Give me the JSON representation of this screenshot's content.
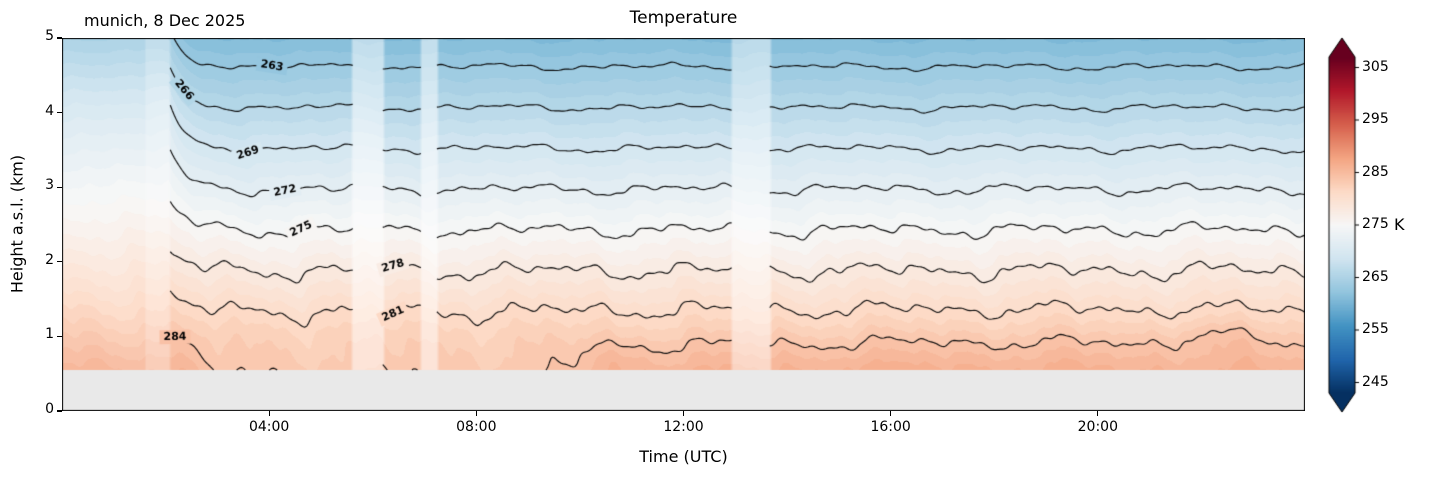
{
  "title": "Temperature",
  "subtitle": "munich, 8 Dec 2025",
  "xlabel": "Time (UTC)",
  "ylabel": "Height a.s.l. (km)",
  "colorbar": {
    "label": "K",
    "ticks": [
      245,
      255,
      265,
      275,
      285,
      295,
      305
    ],
    "vmin": 243,
    "vmax": 307,
    "extend": "both",
    "colormap": "RdBu_r",
    "colors": [
      "#053061",
      "#2166ac",
      "#4393c3",
      "#92c5de",
      "#d1e5f0",
      "#f7f7f7",
      "#fddbc7",
      "#f4a582",
      "#d6604d",
      "#b2182b",
      "#67001f"
    ]
  },
  "axes": {
    "x_range_hours": [
      0,
      24
    ],
    "y_range_km": [
      0,
      5
    ],
    "x_ticks": [
      {
        "value": 4,
        "label": "04:00"
      },
      {
        "value": 8,
        "label": "08:00"
      },
      {
        "value": 12,
        "label": "12:00"
      },
      {
        "value": 16,
        "label": "16:00"
      },
      {
        "value": 20,
        "label": "20:00"
      }
    ],
    "y_ticks": [
      {
        "value": 0,
        "label": "0"
      },
      {
        "value": 1,
        "label": "1"
      },
      {
        "value": 2,
        "label": "2"
      },
      {
        "value": 3,
        "label": "3"
      },
      {
        "value": 4,
        "label": "4"
      },
      {
        "value": 5,
        "label": "5"
      }
    ]
  },
  "chart_data": {
    "type": "heatmap",
    "subtype": "filled-contour time-height cross-section",
    "station": "munich",
    "date": "8 Dec 2025",
    "unit": "K",
    "x_axis": "Time (UTC), 00:00 to 24:00",
    "y_axis": "Height a.s.l. (km), 0 to 5",
    "data_floor_km": 0.55,
    "data_start_utc": 2.05,
    "gaps_utc": [
      [
        5.62,
        6.18
      ],
      [
        6.95,
        7.22
      ],
      [
        12.95,
        13.65
      ]
    ],
    "contour_levels": [
      263,
      266,
      269,
      272,
      275,
      278,
      281,
      284
    ],
    "contour_mean_heights_km": [
      4.61,
      4.07,
      3.52,
      2.98,
      2.43,
      1.89,
      1.3,
      0.82
    ],
    "surface_temperature_K": 285.5,
    "top_temperature_K": 261,
    "lapse_rate_K_per_km": 5.49,
    "contour_labels": [
      {
        "level": 263,
        "t": 4.05
      },
      {
        "level": 266,
        "t": 2.35
      },
      {
        "level": 269,
        "t": 3.6
      },
      {
        "level": 272,
        "t": 4.3
      },
      {
        "level": 275,
        "t": 4.62
      },
      {
        "level": 278,
        "t": 6.4
      },
      {
        "level": 281,
        "t": 6.4
      },
      {
        "level": 284,
        "t": 2.18
      }
    ]
  }
}
